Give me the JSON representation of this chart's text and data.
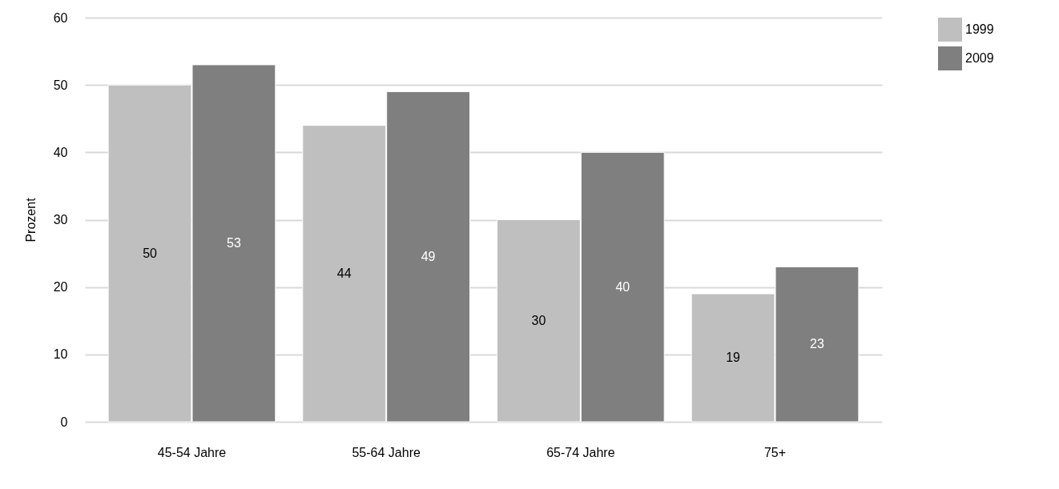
{
  "chart_data": {
    "type": "bar",
    "ylabel": "Prozent",
    "categories": [
      "45-54 Jahre",
      "55-64 Jahre",
      "65-74 Jahre",
      "75+"
    ],
    "series": [
      {
        "name": "1999",
        "color": "#bfbfbf",
        "values": [
          50,
          44,
          30,
          19
        ]
      },
      {
        "name": "2009",
        "color": "#7f7f7f",
        "values": [
          53,
          49,
          40,
          23
        ]
      }
    ],
    "ylim": [
      0,
      60
    ],
    "yticks": [
      0,
      10,
      20,
      30,
      40,
      50,
      60
    ],
    "grid": "y",
    "legend": "right",
    "data_labels": true
  }
}
